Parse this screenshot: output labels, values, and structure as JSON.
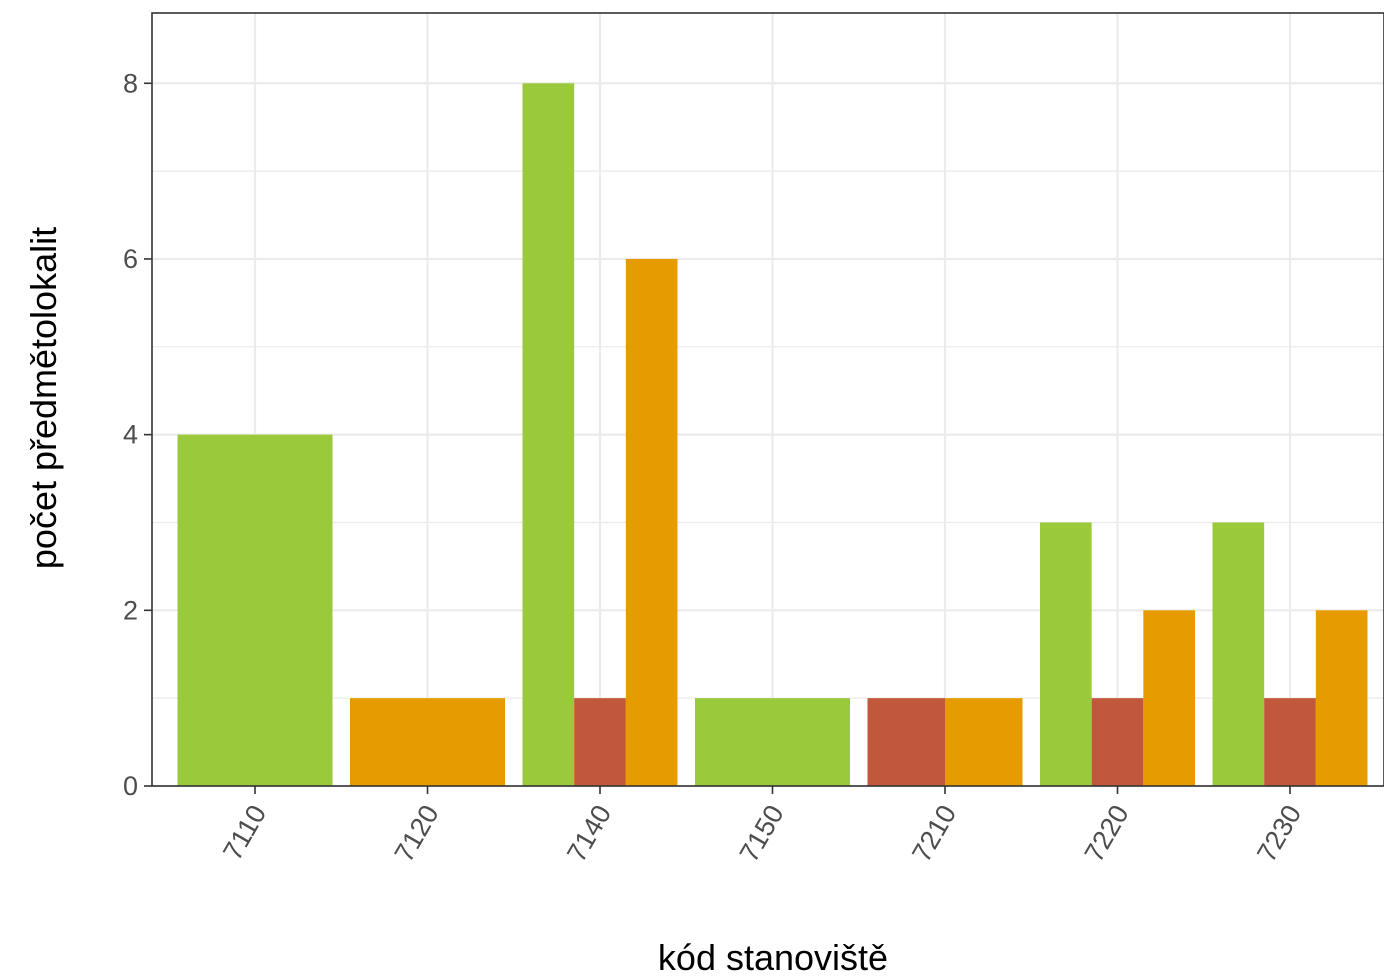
{
  "chart_data": {
    "type": "bar",
    "categories": [
      "7110",
      "7120",
      "7140",
      "7150",
      "7210",
      "7220",
      "7230"
    ],
    "series": [
      {
        "color": "#9ACA3C",
        "values": [
          4,
          0,
          8,
          1,
          0,
          3,
          3
        ]
      },
      {
        "color": "#C1573B",
        "values": [
          0,
          0,
          1,
          0,
          1,
          1,
          1
        ]
      },
      {
        "color": "#E69B00",
        "values": [
          0,
          1,
          6,
          0,
          1,
          2,
          2
        ]
      }
    ],
    "title": "",
    "xlabel": "kód stanoviště",
    "ylabel": "počet předmětolokalit",
    "ylim": [
      0,
      8.8
    ],
    "yticks": [
      0,
      2,
      4,
      6,
      8
    ],
    "grid": true,
    "legend": "none"
  }
}
